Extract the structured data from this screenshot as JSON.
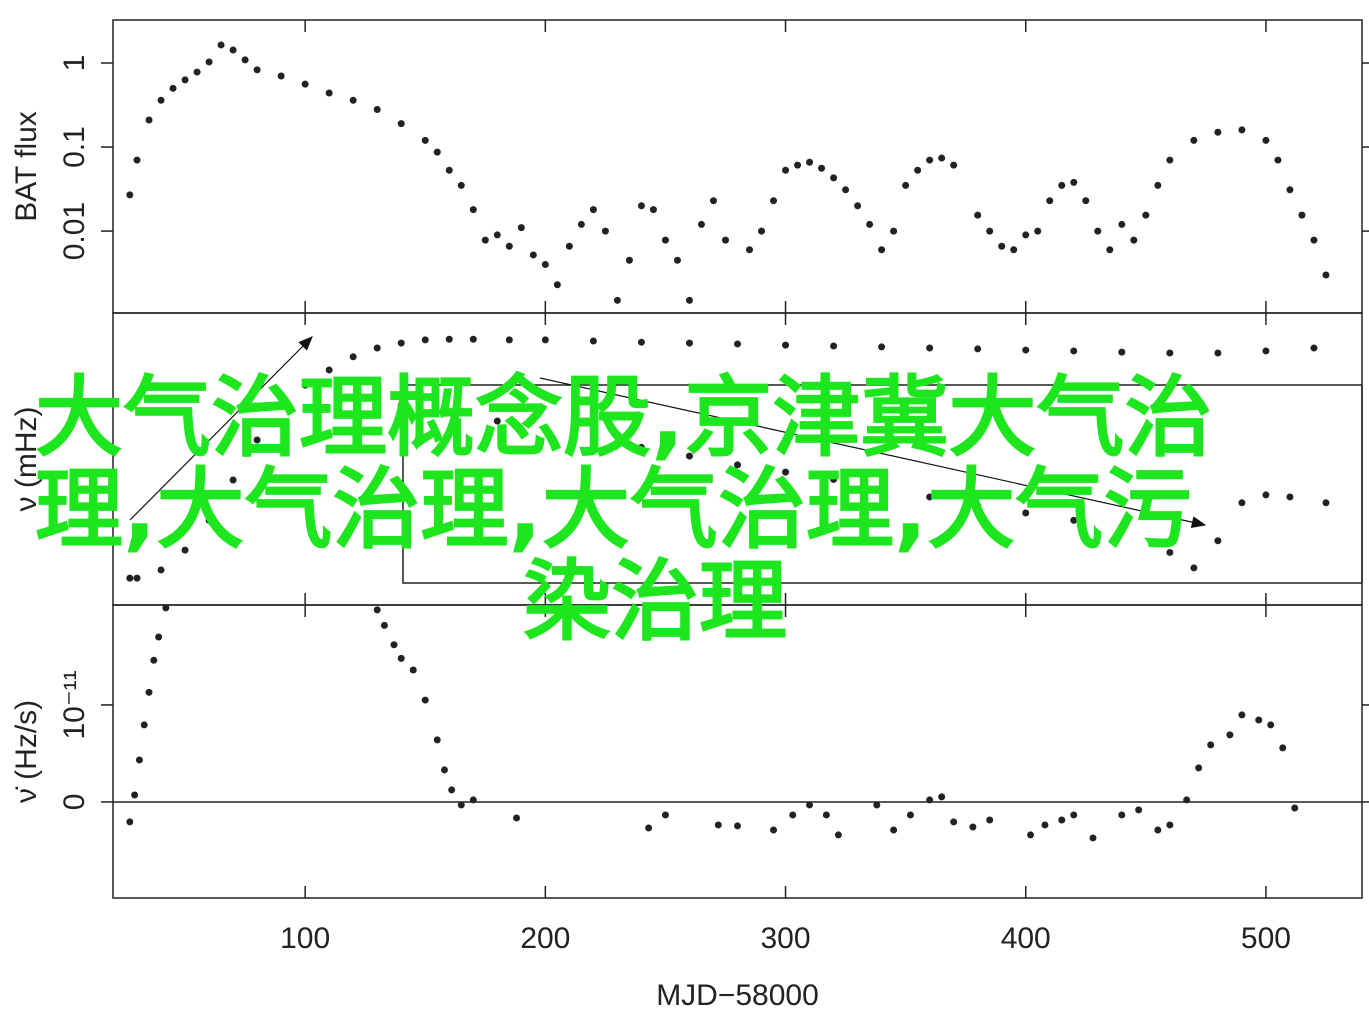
{
  "chart_data": [
    {
      "type": "scatter",
      "ylabel": "BAT flux",
      "log_y": true,
      "xlim": [
        20,
        540
      ],
      "ylim": [
        0.00106,
        3.25
      ],
      "yticks": [
        0.01,
        0.1,
        1
      ],
      "series": [
        {
          "color": "#222222",
          "x": [
            27,
            30,
            35,
            40,
            45,
            50,
            55,
            60,
            65,
            70,
            75,
            80,
            90,
            100,
            110,
            120,
            130,
            140,
            150,
            155,
            160,
            165,
            170,
            175,
            180,
            185,
            190,
            195,
            200,
            205,
            210,
            215,
            220,
            225,
            230,
            235,
            240,
            245,
            250,
            255,
            260,
            265,
            270,
            275,
            285,
            290,
            295,
            300,
            305,
            310,
            315,
            320,
            325,
            330,
            335,
            340,
            345,
            350,
            355,
            360,
            365,
            370,
            380,
            385,
            390,
            395,
            400,
            405,
            410,
            415,
            420,
            425,
            430,
            435,
            440,
            445,
            450,
            455,
            460,
            470,
            480,
            490,
            500,
            505,
            510,
            515,
            520,
            525
          ],
          "values": [
            0.027,
            0.07,
            0.21,
            0.36,
            0.5,
            0.63,
            0.78,
            1.03,
            1.64,
            1.43,
            1.09,
            0.83,
            0.7,
            0.56,
            0.44,
            0.36,
            0.28,
            0.19,
            0.12,
            0.087,
            0.053,
            0.035,
            0.018,
            0.0078,
            0.009,
            0.0066,
            0.011,
            0.0052,
            0.004,
            0.0023,
            0.0066,
            0.012,
            0.018,
            0.01,
            0.0015,
            0.0045,
            0.02,
            0.018,
            0.0078,
            0.0045,
            0.0015,
            0.012,
            0.023,
            0.0078,
            0.006,
            0.01,
            0.023,
            0.053,
            0.061,
            0.066,
            0.056,
            0.043,
            0.031,
            0.02,
            0.012,
            0.006,
            0.01,
            0.035,
            0.053,
            0.07,
            0.074,
            0.061,
            0.0155,
            0.01,
            0.0066,
            0.006,
            0.009,
            0.01,
            0.023,
            0.035,
            0.038,
            0.023,
            0.01,
            0.006,
            0.012,
            0.0078,
            0.0155,
            0.035,
            0.07,
            0.12,
            0.15,
            0.16,
            0.12,
            0.07,
            0.031,
            0.0155,
            0.0078,
            0.003
          ]
        }
      ]
    },
    {
      "type": "scatter",
      "ylabel": "ν (mHz)",
      "xlim": [
        20,
        540
      ],
      "ylim": [
        0,
        100
      ],
      "series": [
        {
          "color": "#222222",
          "x": [
            27,
            30,
            40,
            50,
            60,
            70,
            80,
            90,
            100,
            110,
            120,
            130,
            140,
            150,
            160,
            170,
            185,
            200,
            220,
            240,
            260,
            280,
            300,
            320,
            340,
            360,
            380,
            400,
            420,
            440,
            460,
            480,
            500,
            520
          ],
          "values": [
            9.2,
            9.2,
            12,
            18.8,
            29,
            42.8,
            56.5,
            68.5,
            75.3,
            80.5,
            85,
            88,
            89.7,
            90.8,
            91,
            91,
            90.8,
            90.8,
            90.4,
            90,
            89.7,
            89.4,
            89,
            88.7,
            88.4,
            88,
            87.7,
            87.3,
            87,
            86.6,
            86.3,
            86.3,
            87,
            88
          ]
        },
        {
          "color": "#222222",
          "x": [
            140,
            160,
            180,
            200,
            220,
            240,
            260,
            280,
            300,
            320,
            340,
            360,
            380,
            400,
            420,
            440,
            460,
            470,
            480,
            490,
            500,
            510,
            525
          ],
          "values": [
            68.5,
            66,
            63,
            60,
            57,
            54,
            51,
            48,
            45.5,
            43,
            40,
            37,
            34,
            31.5,
            29,
            26,
            18,
            12.7,
            22,
            35,
            37.7,
            37,
            35
          ]
        }
      ]
    },
    {
      "type": "scatter",
      "ylabel": "ν̇ (Hz/s)",
      "xlabel": "MJD−58000",
      "zero_line": true,
      "xlim": [
        20,
        540
      ],
      "ylim": [
        -9.9e-12,
        2.03e-11
      ],
      "yticks": [
        0,
        {
          "value": 1e-11,
          "label": "10⁻¹¹"
        }
      ],
      "xticks": [
        100,
        200,
        300,
        400,
        500
      ],
      "series": [
        {
          "color": "#222222",
          "x": [
            27,
            29,
            31,
            33,
            35,
            37,
            39,
            42,
            130,
            133,
            137,
            140,
            145,
            150,
            155,
            158,
            161,
            165,
            170,
            188,
            243,
            250,
            272,
            280,
            295,
            303,
            310,
            317,
            322,
            338,
            345,
            352,
            360,
            365,
            370,
            378,
            385,
            402,
            408,
            415,
            420,
            428,
            440,
            447,
            455,
            460,
            467,
            472,
            477,
            485,
            490,
            497,
            502,
            507,
            512
          ],
          "values": [
            -2.06e-12,
            7.2e-13,
            4.33e-12,
            7.94e-12,
            1.13e-11,
            1.46e-11,
            1.7e-11,
            2e-11,
            1.98e-11,
            1.82e-11,
            1.62e-11,
            1.48e-11,
            1.36e-11,
            1.05e-11,
            6.4e-12,
            3.3e-12,
            1.24e-12,
            -3.1e-13,
            2.1e-13,
            -1.65e-12,
            -2.68e-12,
            -1.34e-12,
            -2.37e-12,
            -2.47e-12,
            -2.89e-12,
            -1.34e-12,
            -3.1e-13,
            -1.34e-12,
            -3.4e-12,
            -3.1e-13,
            -2.89e-12,
            -1.34e-12,
            2.1e-13,
            5.2e-13,
            -2.06e-12,
            -2.58e-12,
            -1.86e-12,
            -3.4e-12,
            -2.37e-12,
            -1.86e-12,
            -1.34e-12,
            -3.71e-12,
            -1.34e-12,
            -8.2e-13,
            -2.89e-12,
            -2.37e-12,
            2.1e-13,
            3.51e-12,
            5.88e-12,
            6.91e-12,
            8.97e-12,
            8.45e-12,
            7.94e-12,
            5.57e-12,
            -6.2e-13
          ]
        }
      ]
    }
  ],
  "overlay_text": "大气治理概念股,京津冀大气治理,大气治理,大气治理,大气污染治理"
}
